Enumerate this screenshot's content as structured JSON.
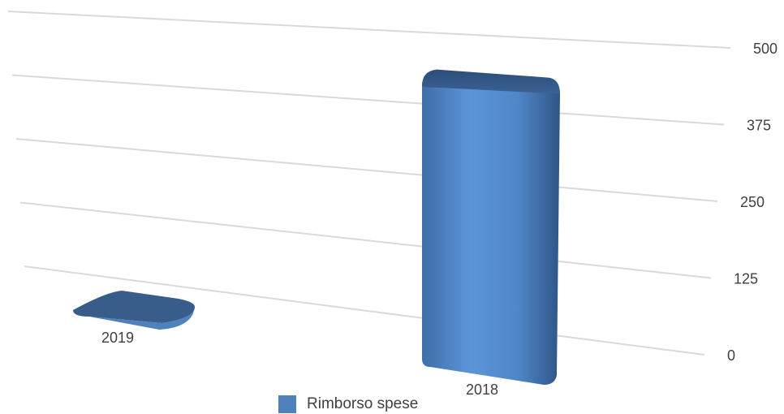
{
  "chart_data": {
    "type": "bar",
    "categories": [
      "2019",
      "2018"
    ],
    "series": [
      {
        "name": "Rimborso spese",
        "values": [
          0,
          480
        ]
      }
    ],
    "yticks": [
      "0",
      "125",
      "250",
      "375",
      "500"
    ],
    "ylim": [
      0,
      500
    ],
    "grid": true,
    "legend_position": "bottom",
    "colors": {
      "bar": "#4f81bd",
      "bar_dark": "#385d8a",
      "grid": "#d9d9d9",
      "text": "#404040"
    }
  }
}
